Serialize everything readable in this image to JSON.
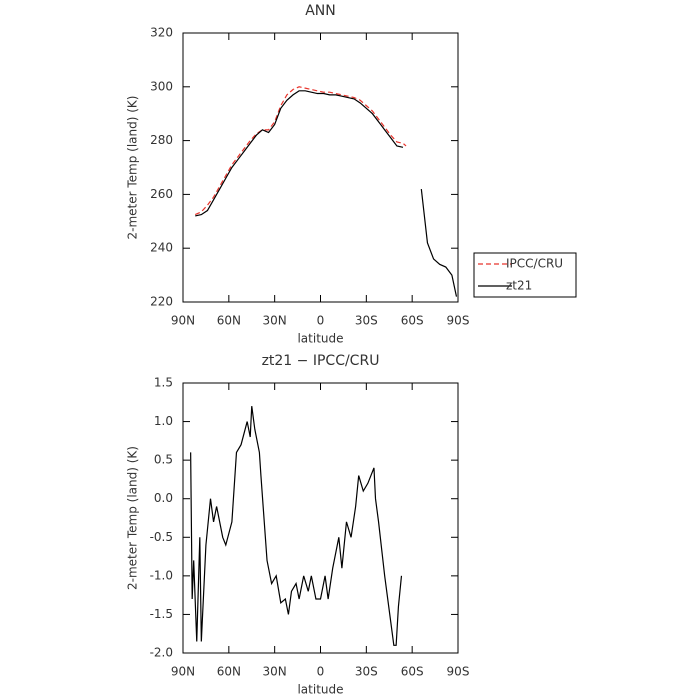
{
  "chart_data": [
    {
      "type": "line",
      "title": "ANN",
      "xlabel": "latitude",
      "ylabel": "2-meter Temp (land) (K)",
      "x": [
        82,
        78,
        74,
        70,
        66,
        62,
        58,
        54,
        50,
        46,
        42,
        38,
        34,
        30,
        26,
        22,
        18,
        14,
        10,
        6,
        2,
        -2,
        -6,
        -10,
        -14,
        -18,
        -22,
        -26,
        -30,
        -34,
        -38,
        -42,
        -46,
        -50,
        -54,
        -56,
        -60,
        -64,
        -66,
        -70,
        -74,
        -78,
        -82,
        -86,
        -89
      ],
      "series": [
        {
          "name": "IPCC/CRU",
          "color": "#e8342c",
          "linestyle": "dashed",
          "values": [
            252.5,
            253.5,
            256,
            259,
            263,
            267,
            271,
            274,
            277,
            280,
            282.5,
            284,
            284,
            287,
            293,
            297,
            299,
            300,
            299.5,
            299,
            298.5,
            298,
            298,
            297.5,
            297,
            296.5,
            296,
            295,
            293,
            291,
            288,
            285,
            282,
            279.5,
            279,
            278,
            null,
            null,
            null,
            null,
            null,
            null,
            null,
            null,
            null
          ]
        },
        {
          "name": "zt21",
          "color": "#000000",
          "linestyle": "solid",
          "values": [
            252,
            252.5,
            254,
            258,
            262,
            266,
            270,
            273,
            276,
            279,
            282,
            284,
            283,
            286,
            292,
            295,
            297,
            298.5,
            298.5,
            298,
            297.5,
            297.5,
            297,
            297,
            296.5,
            296,
            295.5,
            294,
            292,
            290,
            287,
            284,
            281,
            278,
            277.5,
            null,
            null,
            null,
            262,
            242,
            236,
            234,
            233,
            230,
            222
          ]
        }
      ],
      "xlim": [
        90,
        -90
      ],
      "xticks": [
        {
          "value": 90,
          "label": "90N"
        },
        {
          "value": 60,
          "label": "60N"
        },
        {
          "value": 30,
          "label": "30N"
        },
        0,
        {
          "value": -30,
          "label": "30S"
        },
        {
          "value": -60,
          "label": "60S"
        },
        {
          "value": -90,
          "label": "90S"
        }
      ],
      "ylim": [
        220,
        320
      ],
      "yticks": [
        220,
        240,
        260,
        280,
        300,
        320
      ],
      "legend": "right"
    },
    {
      "type": "line",
      "title": "zt21 − IPCC/CRU",
      "xlabel": "latitude",
      "ylabel": "2-meter Temp (land) (K)",
      "x": [
        85,
        84,
        83,
        81,
        79,
        78,
        75,
        72,
        70,
        68,
        64,
        62,
        58,
        55,
        52,
        48,
        46,
        45,
        43,
        40,
        39,
        35,
        32,
        29,
        26,
        23,
        21,
        19,
        16,
        14,
        11,
        8,
        6,
        3,
        0,
        -3,
        -5,
        -8,
        -12,
        -14,
        -17,
        -20,
        -23,
        -25,
        -28,
        -31,
        -35,
        -36,
        -38,
        -42,
        -46,
        -48,
        -49.5,
        -51,
        -53
      ],
      "series": [
        {
          "name": "zt21",
          "color": "#000000",
          "linestyle": "solid",
          "values": [
            0.6,
            -1.3,
            -0.8,
            -1.85,
            -0.5,
            -1.85,
            -0.6,
            0.0,
            -0.3,
            -0.1,
            -0.5,
            -0.6,
            -0.3,
            0.6,
            0.7,
            1.0,
            0.8,
            1.2,
            0.9,
            0.6,
            0.3,
            -0.8,
            -1.1,
            -1.0,
            -1.35,
            -1.3,
            -1.5,
            -1.2,
            -1.1,
            -1.3,
            -1.0,
            -1.2,
            -1.0,
            -1.3,
            -1.3,
            -1.0,
            -1.3,
            -0.9,
            -0.5,
            -0.9,
            -0.3,
            -0.5,
            -0.1,
            0.3,
            0.1,
            0.2,
            0.4,
            0.0,
            -0.3,
            -1.0,
            -1.6,
            -1.9,
            -1.9,
            -1.4,
            -1.0
          ]
        }
      ],
      "xlim": [
        90,
        -90
      ],
      "xticks": [
        {
          "value": 90,
          "label": "90N"
        },
        {
          "value": 60,
          "label": "60N"
        },
        {
          "value": 30,
          "label": "30N"
        },
        0,
        {
          "value": -30,
          "label": "30S"
        },
        {
          "value": -60,
          "label": "60S"
        },
        {
          "value": -90,
          "label": "90S"
        }
      ],
      "ylim": [
        -2,
        1.5
      ],
      "yticks": [
        {
          "value": -2,
          "label": "-2.0"
        },
        -1.5,
        {
          "value": -1,
          "label": "-1.0"
        },
        -0.5,
        {
          "value": 0,
          "label": "0.0"
        },
        0.5,
        {
          "value": 1,
          "label": "1.0"
        },
        1.5
      ]
    }
  ]
}
